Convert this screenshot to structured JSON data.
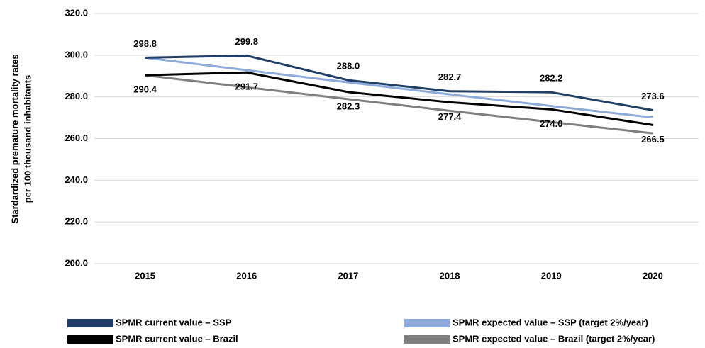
{
  "chart_data": {
    "type": "line",
    "ylabel": [
      "Stardardized premature mortality rates",
      "per 100 thousand inhabitants"
    ],
    "categories": [
      "2015",
      "2016",
      "2017",
      "2018",
      "2019",
      "2020"
    ],
    "ylim": [
      200,
      320
    ],
    "yticks": [
      {
        "value": 200,
        "label": "200.0"
      },
      {
        "value": 220,
        "label": "220.0"
      },
      {
        "value": 240,
        "label": "240.0"
      },
      {
        "value": 260,
        "label": "260.0"
      },
      {
        "value": 280,
        "label": "280.0"
      },
      {
        "value": 300,
        "label": "300.0"
      },
      {
        "value": 320,
        "label": "320.0"
      }
    ],
    "grid": true,
    "legend": "bottom",
    "series": [
      {
        "name": "SPMR current value – SSP",
        "color": "#1f3f66",
        "values": [
          298.8,
          299.8,
          288.0,
          282.7,
          282.2,
          273.6
        ],
        "value_labels": [
          "298.8",
          "299.8",
          "288.0",
          "282.7",
          "282.2",
          "273.6"
        ],
        "label_position": "above"
      },
      {
        "name": "SPMR expected value – SSP (target 2%/year)",
        "color": "#8eaadb",
        "values": [
          298.8,
          292.8,
          287.0,
          281.2,
          275.6,
          270.1
        ]
      },
      {
        "name": "SPMR current value – Brazil",
        "color": "#000000",
        "values": [
          290.4,
          291.7,
          282.3,
          277.4,
          274.0,
          266.5
        ],
        "value_labels": [
          "290.4",
          "291.7",
          "282.3",
          "277.4",
          "274.0",
          "266.5"
        ],
        "label_position": "below"
      },
      {
        "name": "SPMR expected value – Brazil (target 2%/year)",
        "color": "#7f7f7f",
        "values": [
          290.4,
          284.6,
          278.9,
          273.3,
          267.9,
          262.5
        ]
      }
    ]
  }
}
